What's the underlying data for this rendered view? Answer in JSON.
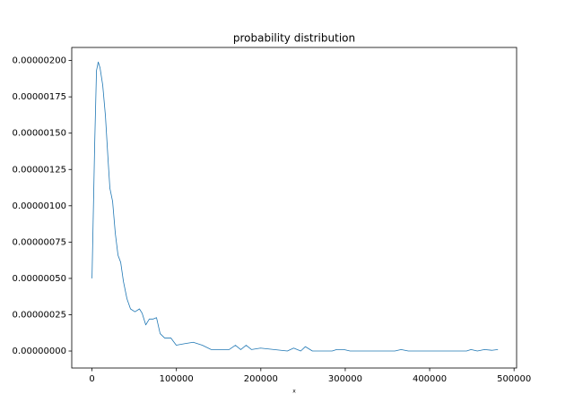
{
  "chart_data": {
    "type": "line",
    "title": "probability distribution",
    "x_label": "x",
    "x": [
      0,
      3200,
      5300,
      7400,
      9500,
      12700,
      15900,
      19100,
      21200,
      24400,
      27600,
      30800,
      34000,
      37200,
      41400,
      45600,
      50900,
      56200,
      59400,
      63700,
      67900,
      72200,
      76400,
      80700,
      86000,
      93400,
      99800,
      109300,
      119900,
      130600,
      141200,
      151800,
      162400,
      169900,
      176200,
      182600,
      189000,
      199600,
      215500,
      231400,
      238900,
      247300,
      252700,
      261100,
      284500,
      289800,
      298300,
      305700,
      358800,
      366200,
      374700,
      443700,
      449000,
      456500,
      465000,
      473500,
      480900
    ],
    "series": [
      {
        "color": "#1f77b4",
        "values": [
          5e-07,
          1.43e-06,
          1.93e-06,
          1.99e-06,
          1.95e-06,
          1.83e-06,
          1.62e-06,
          1.31e-06,
          1.12e-06,
          1.03e-06,
          8.1e-07,
          6.6e-07,
          6.1e-07,
          4.8e-07,
          3.6e-07,
          2.9e-07,
          2.7e-07,
          2.9e-07,
          2.6e-07,
          1.8e-07,
          2.2e-07,
          2.2e-07,
          2.3e-07,
          1.2e-07,
          9e-08,
          9e-08,
          4e-08,
          5e-08,
          6e-08,
          4e-08,
          1e-08,
          1e-08,
          1e-08,
          4e-08,
          1e-08,
          4e-08,
          1e-08,
          2e-08,
          1e-08,
          0,
          2e-08,
          0,
          3e-08,
          0,
          0,
          1e-08,
          1e-08,
          0,
          0,
          1e-08,
          0,
          0,
          1e-08,
          0,
          1e-08,
          5e-09,
          1e-08
        ]
      }
    ],
    "xlim": [
      -24000,
      503000
    ],
    "ylim": [
      -1.17e-07,
      2.09e-06
    ],
    "xticks": [
      0,
      100000,
      200000,
      300000,
      400000,
      500000
    ],
    "yticks": [
      {
        "value": 0,
        "label": "0.00000000"
      },
      {
        "value": 2.5e-07,
        "label": "0.00000025"
      },
      {
        "value": 5e-07,
        "label": "0.00000050"
      },
      {
        "value": 7.5e-07,
        "label": "0.00000075"
      },
      {
        "value": 1e-06,
        "label": "0.00000100"
      },
      {
        "value": 1.25e-06,
        "label": "0.00000125"
      },
      {
        "value": 1.5e-06,
        "label": "0.00000150"
      },
      {
        "value": 1.75e-06,
        "label": "0.00000175"
      },
      {
        "value": 2e-06,
        "label": "0.00000200"
      }
    ]
  }
}
